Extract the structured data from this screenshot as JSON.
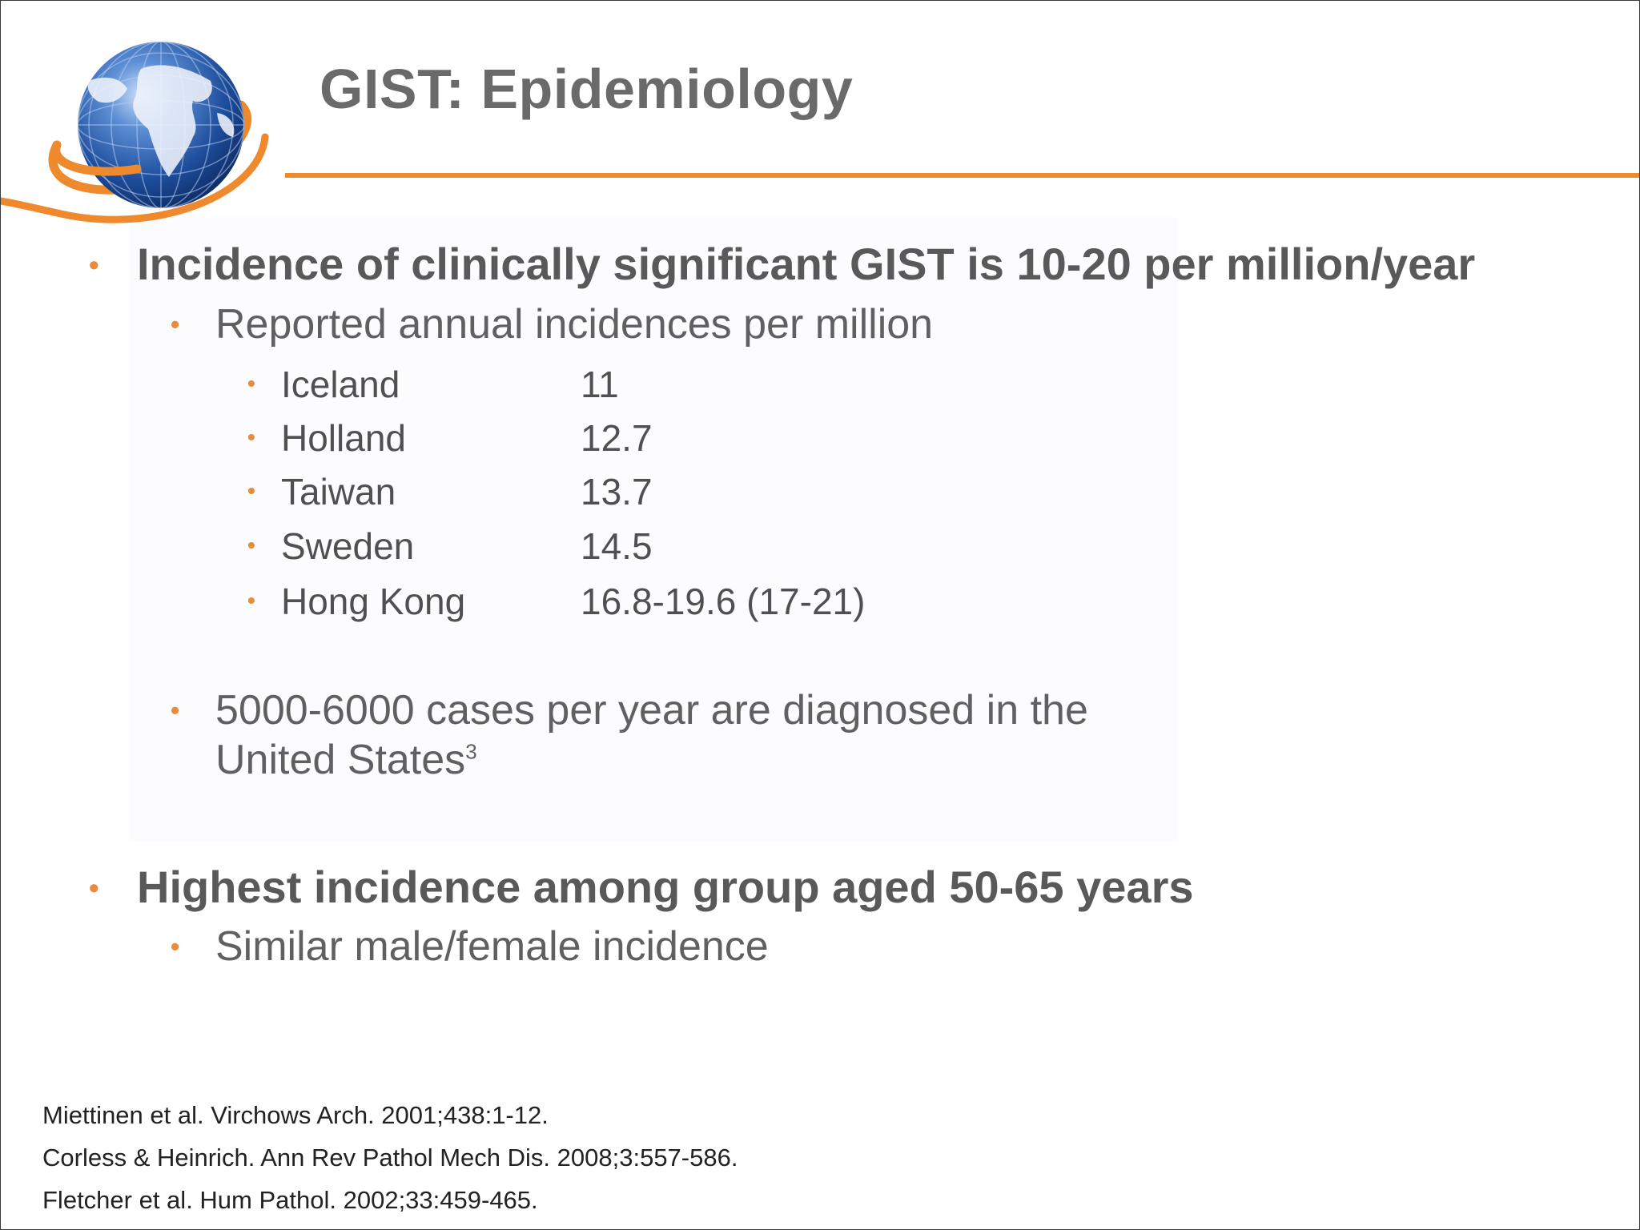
{
  "slide": {
    "title": "GIST: Epidemiology",
    "colors": {
      "accent": "#ee8a2d",
      "title_text": "#6a6a6a",
      "body_text": "#595959",
      "globe_blue": "#1e4e9c"
    },
    "icons": {
      "logo": "globe-icon",
      "bullet": "bullet-dot-icon"
    }
  },
  "bullets": {
    "b1": {
      "text": "Incidence of clinically significant GIST is 10-20 per million/year",
      "sub": {
        "text": "Reported annual incidences per million",
        "rows": [
          {
            "country": "Iceland",
            "value": "11"
          },
          {
            "country": "Holland",
            "value": "12.7"
          },
          {
            "country": "Taiwan",
            "value": "13.7"
          },
          {
            "country": "Sweden",
            "value": "14.5"
          },
          {
            "country": "Hong Kong",
            "value": "16.8-19.6 (17-21)"
          }
        ]
      },
      "sub2": {
        "line1": "5000-6000 cases per year are diagnosed in the",
        "line2": "United States",
        "superscript": "3"
      }
    },
    "b2": {
      "text": "Highest incidence among group aged 50-65 years",
      "sub": "Similar male/female incidence"
    }
  },
  "references": [
    "Miettinen et al. Virchows Arch. 2001;438:1-12.",
    "Corless & Heinrich. Ann Rev Pathol Mech Dis. 2008;3:557-586.",
    "Fletcher et al. Hum Pathol. 2002;33:459-465."
  ]
}
